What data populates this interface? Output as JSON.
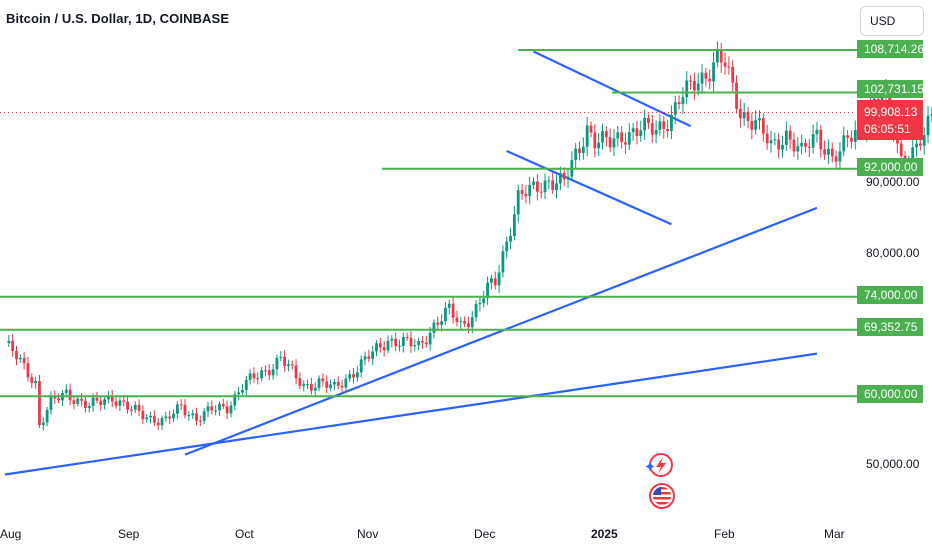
{
  "header": {
    "title": "Bitcoin / U.S. Dollar, 1D, COINBASE",
    "currency": "USD"
  },
  "colors": {
    "up": "#089981",
    "down": "#f23645",
    "level_line": "#4caf50",
    "trend_line": "#2962ff",
    "price_label": "#f23645"
  },
  "chart_data": {
    "type": "candlestick",
    "xlabels": [
      "Aug",
      "Sep",
      "Oct",
      "Nov",
      "Dec",
      "2025",
      "Feb",
      "Mar"
    ],
    "ylabels": [
      "90,000.00",
      "80,000.00",
      "50,000.00"
    ],
    "ylim": [
      43000,
      113000
    ],
    "levels": [
      {
        "value": "108,714.26",
        "y": 108714.26
      },
      {
        "value": "102,731.15",
        "y": 102731.15
      },
      {
        "value": "92,000.00",
        "y": 92000
      },
      {
        "value": "74,000.00",
        "y": 74000
      },
      {
        "value": "69,352.75",
        "y": 69352.75
      },
      {
        "value": "60,000.00",
        "y": 60000
      }
    ],
    "current_price": "99,908.13",
    "countdown": "06:05:51",
    "trendlines": [
      {
        "x1": "2024-08-01",
        "y1": 49000,
        "x2": "2025-03-01",
        "y2": 66000
      },
      {
        "x1": "2024-09-17",
        "y1": 51800,
        "x2": "2025-03-01",
        "y2": 86500
      },
      {
        "x1": "2024-12-17",
        "y1": 108500,
        "x2": "2025-01-27",
        "y2": 98000
      },
      {
        "x1": "2024-12-10",
        "y1": 94500,
        "x2": "2025-01-22",
        "y2": 84200
      }
    ],
    "grid": false
  },
  "icons": [
    "lightning-event-icon",
    "us-flag-event-icon"
  ]
}
